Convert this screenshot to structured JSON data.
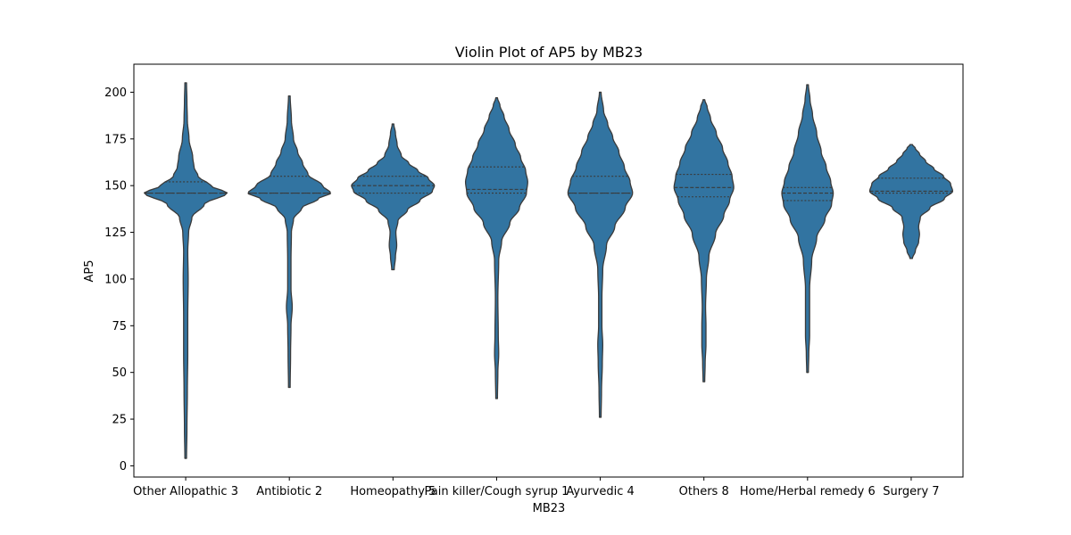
{
  "chart_data": {
    "type": "violin",
    "title": "Violin Plot of AP5 by MB23",
    "xlabel": "MB23",
    "ylabel": "AP5",
    "ylim": [
      -6,
      215
    ],
    "yticks": [
      0,
      25,
      50,
      75,
      100,
      125,
      150,
      175,
      200
    ],
    "grid": false,
    "color": "#3274a1",
    "edge_color": "#3a3a3a",
    "categories": [
      "Other Allopathic 3",
      "Antibiotic 2",
      "Homeopathy 5",
      "Pain killer/Cough syrup 1",
      "Ayurvedic 4",
      "Others 8",
      "Home/Herbal remedy 6",
      "Surgery 7"
    ],
    "series": [
      {
        "min": 4,
        "max": 205,
        "q1": 146,
        "median": 146,
        "q3": 152,
        "profile": [
          [
            4,
            0.02
          ],
          [
            20,
            0.03
          ],
          [
            40,
            0.04
          ],
          [
            60,
            0.05
          ],
          [
            80,
            0.05
          ],
          [
            100,
            0.06
          ],
          [
            115,
            0.05
          ],
          [
            125,
            0.07
          ],
          [
            133,
            0.15
          ],
          [
            140,
            0.45
          ],
          [
            146,
            1.0
          ],
          [
            150,
            0.6
          ],
          [
            155,
            0.3
          ],
          [
            160,
            0.2
          ],
          [
            165,
            0.17
          ],
          [
            175,
            0.08
          ],
          [
            185,
            0.04
          ],
          [
            195,
            0.03
          ],
          [
            205,
            0.02
          ]
        ]
      },
      {
        "min": 42,
        "max": 198,
        "q1": 146,
        "median": 146,
        "q3": 155,
        "profile": [
          [
            42,
            0.02
          ],
          [
            60,
            0.03
          ],
          [
            75,
            0.04
          ],
          [
            85,
            0.07
          ],
          [
            95,
            0.04
          ],
          [
            110,
            0.04
          ],
          [
            125,
            0.05
          ],
          [
            132,
            0.1
          ],
          [
            138,
            0.3
          ],
          [
            143,
            0.7
          ],
          [
            146,
            1.0
          ],
          [
            150,
            0.8
          ],
          [
            156,
            0.45
          ],
          [
            162,
            0.32
          ],
          [
            168,
            0.2
          ],
          [
            175,
            0.1
          ],
          [
            185,
            0.05
          ],
          [
            198,
            0.02
          ]
        ]
      },
      {
        "min": 105,
        "max": 183,
        "q1": 146,
        "median": 150,
        "q3": 155,
        "profile": [
          [
            105,
            0.03
          ],
          [
            112,
            0.06
          ],
          [
            118,
            0.09
          ],
          [
            125,
            0.07
          ],
          [
            131,
            0.12
          ],
          [
            137,
            0.35
          ],
          [
            142,
            0.65
          ],
          [
            147,
            0.95
          ],
          [
            150,
            1.0
          ],
          [
            154,
            0.85
          ],
          [
            158,
            0.6
          ],
          [
            162,
            0.38
          ],
          [
            166,
            0.2
          ],
          [
            172,
            0.1
          ],
          [
            178,
            0.06
          ],
          [
            183,
            0.02
          ]
        ]
      },
      {
        "min": 36,
        "max": 197,
        "q1": 146,
        "median": 148,
        "q3": 160,
        "profile": [
          [
            36,
            0.02
          ],
          [
            50,
            0.03
          ],
          [
            60,
            0.05
          ],
          [
            70,
            0.04
          ],
          [
            90,
            0.03
          ],
          [
            110,
            0.05
          ],
          [
            120,
            0.12
          ],
          [
            130,
            0.32
          ],
          [
            138,
            0.55
          ],
          [
            146,
            0.72
          ],
          [
            152,
            0.75
          ],
          [
            158,
            0.7
          ],
          [
            165,
            0.58
          ],
          [
            172,
            0.45
          ],
          [
            180,
            0.3
          ],
          [
            187,
            0.18
          ],
          [
            193,
            0.08
          ],
          [
            197,
            0.02
          ]
        ]
      },
      {
        "min": 26,
        "max": 200,
        "q1": 146,
        "median": 146,
        "q3": 155,
        "profile": [
          [
            26,
            0.02
          ],
          [
            40,
            0.03
          ],
          [
            55,
            0.05
          ],
          [
            65,
            0.06
          ],
          [
            75,
            0.04
          ],
          [
            90,
            0.04
          ],
          [
            105,
            0.06
          ],
          [
            118,
            0.15
          ],
          [
            128,
            0.35
          ],
          [
            138,
            0.6
          ],
          [
            146,
            0.78
          ],
          [
            152,
            0.72
          ],
          [
            160,
            0.58
          ],
          [
            168,
            0.45
          ],
          [
            176,
            0.3
          ],
          [
            183,
            0.18
          ],
          [
            190,
            0.08
          ],
          [
            200,
            0.02
          ]
        ]
      },
      {
        "min": 45,
        "max": 196,
        "q1": 144,
        "median": 149,
        "q3": 156,
        "profile": [
          [
            45,
            0.02
          ],
          [
            55,
            0.03
          ],
          [
            65,
            0.05
          ],
          [
            75,
            0.05
          ],
          [
            85,
            0.04
          ],
          [
            100,
            0.06
          ],
          [
            112,
            0.12
          ],
          [
            124,
            0.28
          ],
          [
            134,
            0.48
          ],
          [
            142,
            0.62
          ],
          [
            149,
            0.72
          ],
          [
            155,
            0.68
          ],
          [
            162,
            0.58
          ],
          [
            170,
            0.45
          ],
          [
            178,
            0.3
          ],
          [
            186,
            0.16
          ],
          [
            192,
            0.08
          ],
          [
            196,
            0.02
          ]
        ]
      },
      {
        "min": 50,
        "max": 204,
        "q1": 142,
        "median": 146,
        "q3": 149,
        "profile": [
          [
            50,
            0.02
          ],
          [
            60,
            0.03
          ],
          [
            70,
            0.05
          ],
          [
            80,
            0.05
          ],
          [
            95,
            0.05
          ],
          [
            110,
            0.1
          ],
          [
            122,
            0.22
          ],
          [
            132,
            0.42
          ],
          [
            140,
            0.58
          ],
          [
            146,
            0.62
          ],
          [
            152,
            0.56
          ],
          [
            160,
            0.45
          ],
          [
            168,
            0.33
          ],
          [
            178,
            0.22
          ],
          [
            188,
            0.12
          ],
          [
            196,
            0.06
          ],
          [
            204,
            0.02
          ]
        ]
      },
      {
        "min": 111,
        "max": 172,
        "q1": 146,
        "median": 147,
        "q3": 154,
        "profile": [
          [
            111,
            0.03
          ],
          [
            115,
            0.1
          ],
          [
            120,
            0.18
          ],
          [
            124,
            0.2
          ],
          [
            128,
            0.18
          ],
          [
            133,
            0.22
          ],
          [
            138,
            0.45
          ],
          [
            143,
            0.8
          ],
          [
            147,
            1.0
          ],
          [
            151,
            0.95
          ],
          [
            155,
            0.78
          ],
          [
            159,
            0.55
          ],
          [
            163,
            0.35
          ],
          [
            167,
            0.2
          ],
          [
            170,
            0.1
          ],
          [
            172,
            0.03
          ]
        ]
      }
    ]
  }
}
